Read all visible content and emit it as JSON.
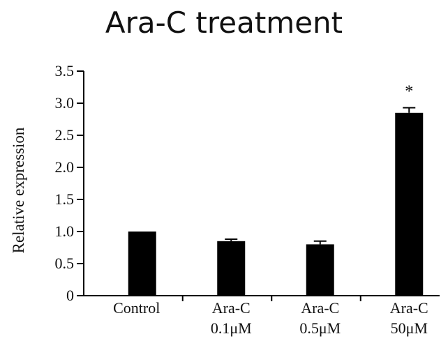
{
  "chart_data": {
    "type": "bar",
    "title": "Ara-C treatment",
    "xlabel": "",
    "ylabel": "Relative expression",
    "ylim": [
      0,
      3.5
    ],
    "yticks": [
      "0",
      "0.5",
      "1.0",
      "1.5",
      "2.0",
      "2.5",
      "3.0",
      "3.5"
    ],
    "categories": [
      [
        "Control"
      ],
      [
        "Ara-C",
        "0.1μM"
      ],
      [
        "Ara-C",
        "0.5μM"
      ],
      [
        "Ara-C",
        "50μM"
      ]
    ],
    "values": [
      1.0,
      0.85,
      0.8,
      2.85
    ],
    "errors": [
      0.0,
      0.03,
      0.05,
      0.08
    ],
    "annotations": [
      "",
      "",
      "",
      "*"
    ],
    "bar_color": "#000000",
    "grid": false,
    "legend": "none"
  }
}
